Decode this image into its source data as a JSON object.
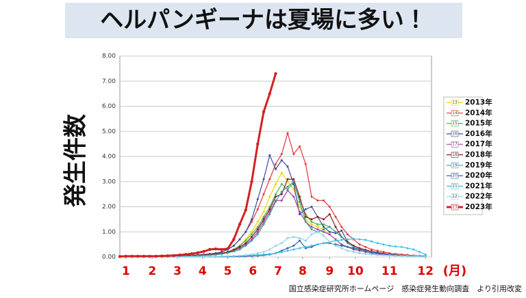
{
  "title": "ヘルパンギーナは夏場に多い！",
  "source": "国立感染症研究所ホームページ　感染症発生動向調査　より引用改変",
  "chart_data": {
    "type": "line",
    "y_label": "発生件数",
    "x_label": "(月)",
    "x": [
      1,
      2,
      3,
      4,
      5,
      6,
      7,
      8,
      9,
      10,
      11,
      12,
      13,
      14,
      15,
      16,
      17,
      18,
      19,
      20,
      21,
      22,
      23,
      24,
      25,
      26,
      27,
      28,
      29,
      30,
      31,
      32,
      33,
      34,
      35,
      36,
      37,
      38,
      39,
      40,
      41,
      42,
      43,
      44,
      45,
      46,
      47,
      48,
      49,
      50,
      51,
      52
    ],
    "xlim": [
      1,
      53
    ],
    "xticks": [
      {
        "value": 2,
        "label": "1"
      },
      {
        "value": 6.4,
        "label": "2"
      },
      {
        "value": 10.6,
        "label": "3"
      },
      {
        "value": 14.8,
        "label": "4"
      },
      {
        "value": 19,
        "label": "5"
      },
      {
        "value": 23.2,
        "label": "6"
      },
      {
        "value": 27.4,
        "label": "7"
      },
      {
        "value": 31.5,
        "label": "8"
      },
      {
        "value": 36,
        "label": "9"
      },
      {
        "value": 40.3,
        "label": "10"
      },
      {
        "value": 46,
        "label": "11"
      },
      {
        "value": 52,
        "label": "12"
      }
    ],
    "ylim": [
      0,
      8
    ],
    "yticks": [
      {
        "value": 0,
        "label": "0.00"
      },
      {
        "value": 1,
        "label": "1.00"
      },
      {
        "value": 2,
        "label": "2.00"
      },
      {
        "value": 3,
        "label": "3.00"
      },
      {
        "value": 4,
        "label": "4.00"
      },
      {
        "value": 5,
        "label": "5.00"
      },
      {
        "value": 6,
        "label": "6.00"
      },
      {
        "value": 7,
        "label": "7.00"
      },
      {
        "value": 8,
        "label": "8.00"
      }
    ],
    "grid": true,
    "series": [
      {
        "name": "2013年",
        "short": "13",
        "color": "#f2d400",
        "values": [
          0.02,
          0.02,
          0.02,
          0.02,
          0.02,
          0.02,
          0.03,
          0.03,
          0.03,
          0.03,
          0.04,
          0.05,
          0.06,
          0.07,
          0.08,
          0.1,
          0.12,
          0.15,
          0.2,
          0.3,
          0.45,
          0.7,
          1.0,
          1.4,
          1.8,
          2.4,
          2.9,
          3.35,
          3.0,
          2.7,
          2.0,
          1.5,
          1.3,
          1.2,
          1.1,
          0.9,
          0.7,
          0.5,
          0.4,
          0.3,
          0.25,
          0.2,
          0.15,
          0.12,
          0.1,
          0.08,
          0.07,
          0.06,
          0.05,
          0.04,
          0.04,
          0.03
        ]
      },
      {
        "name": "2014年",
        "short": "14",
        "color": "#e8333a",
        "values": [
          0.02,
          0.02,
          0.02,
          0.02,
          0.02,
          0.03,
          0.03,
          0.03,
          0.03,
          0.04,
          0.05,
          0.06,
          0.07,
          0.08,
          0.1,
          0.12,
          0.15,
          0.2,
          0.3,
          0.45,
          0.7,
          1.0,
          1.4,
          1.9,
          2.5,
          3.1,
          3.7,
          4.1,
          4.93,
          4.1,
          4.4,
          3.7,
          2.4,
          2.25,
          2.25,
          2.0,
          1.6,
          1.2,
          0.9,
          0.7,
          0.5,
          0.4,
          0.3,
          0.25,
          0.2,
          0.15,
          0.12,
          0.1,
          0.08,
          0.06,
          0.05,
          0.04
        ]
      },
      {
        "name": "2015年",
        "short": "15",
        "color": "#4cb848",
        "values": [
          0.01,
          0.01,
          0.01,
          0.01,
          0.01,
          0.02,
          0.02,
          0.02,
          0.02,
          0.02,
          0.03,
          0.03,
          0.04,
          0.05,
          0.06,
          0.08,
          0.1,
          0.14,
          0.2,
          0.3,
          0.45,
          0.65,
          0.9,
          1.2,
          1.6,
          2.0,
          2.5,
          2.9,
          2.7,
          2.95,
          2.3,
          1.7,
          1.4,
          1.3,
          1.3,
          1.2,
          1.0,
          0.8,
          0.6,
          0.45,
          0.35,
          0.28,
          0.22,
          0.18,
          0.14,
          0.1,
          0.08,
          0.06,
          0.05,
          0.04,
          0.03,
          0.03
        ]
      },
      {
        "name": "2016年",
        "short": "16",
        "color": "#3b4a9a",
        "values": [
          0.02,
          0.02,
          0.02,
          0.02,
          0.02,
          0.02,
          0.03,
          0.03,
          0.03,
          0.04,
          0.05,
          0.06,
          0.07,
          0.08,
          0.1,
          0.12,
          0.15,
          0.2,
          0.3,
          0.45,
          0.7,
          1.0,
          1.5,
          2.3,
          3.1,
          4.05,
          3.5,
          3.85,
          3.6,
          2.9,
          1.7,
          1.9,
          2.0,
          1.6,
          1.2,
          1.0,
          0.95,
          1.05,
          0.6,
          0.45,
          0.35,
          0.28,
          0.22,
          0.18,
          0.14,
          0.1,
          0.08,
          0.06,
          0.05,
          0.04,
          0.03,
          0.03
        ]
      },
      {
        "name": "2017年",
        "short": "17",
        "color": "#a040a8",
        "values": [
          0.01,
          0.01,
          0.01,
          0.01,
          0.01,
          0.01,
          0.02,
          0.02,
          0.02,
          0.02,
          0.03,
          0.03,
          0.04,
          0.05,
          0.06,
          0.08,
          0.1,
          0.13,
          0.18,
          0.25,
          0.35,
          0.5,
          0.7,
          1.0,
          1.4,
          1.8,
          2.25,
          2.25,
          2.65,
          2.4,
          1.8,
          1.4,
          1.2,
          1.1,
          1.0,
          0.9,
          0.7,
          0.5,
          0.4,
          0.3,
          0.25,
          0.2,
          0.15,
          0.12,
          0.1,
          0.08,
          0.06,
          0.05,
          0.04,
          0.03,
          0.03,
          0.02
        ]
      },
      {
        "name": "2018年",
        "short": "18",
        "color": "#8b1a1a",
        "values": [
          0.02,
          0.02,
          0.02,
          0.02,
          0.02,
          0.02,
          0.03,
          0.03,
          0.03,
          0.03,
          0.04,
          0.05,
          0.06,
          0.07,
          0.08,
          0.1,
          0.12,
          0.15,
          0.2,
          0.28,
          0.4,
          0.55,
          0.8,
          1.1,
          1.5,
          1.9,
          2.4,
          2.5,
          3.1,
          3.1,
          2.4,
          1.6,
          1.5,
          1.6,
          1.5,
          1.7,
          1.2,
          0.8,
          0.6,
          0.45,
          0.35,
          0.28,
          0.22,
          0.18,
          0.14,
          0.1,
          0.08,
          0.06,
          0.05,
          0.04,
          0.03,
          0.03
        ]
      },
      {
        "name": "2019年",
        "short": "19",
        "color": "#3aa0a0",
        "values": [
          0.01,
          0.01,
          0.01,
          0.01,
          0.01,
          0.01,
          0.02,
          0.02,
          0.02,
          0.02,
          0.03,
          0.03,
          0.04,
          0.05,
          0.06,
          0.07,
          0.09,
          0.12,
          0.16,
          0.22,
          0.3,
          0.45,
          0.65,
          0.9,
          1.3,
          1.7,
          2.2,
          2.6,
          2.8,
          3.0,
          2.2,
          1.4,
          1.1,
          1.0,
          1.1,
          1.2,
          1.0,
          0.8,
          0.55,
          0.4,
          0.3,
          0.25,
          0.2,
          0.16,
          0.12,
          0.1,
          0.08,
          0.06,
          0.05,
          0.04,
          0.03,
          0.03
        ]
      },
      {
        "name": "2020年",
        "short": "20",
        "color": "#3060b0",
        "values": [
          0.02,
          0.02,
          0.02,
          0.02,
          0.02,
          0.02,
          0.02,
          0.02,
          0.01,
          0.01,
          0.01,
          0.01,
          0.01,
          0.01,
          0.01,
          0.01,
          0.01,
          0.01,
          0.01,
          0.02,
          0.02,
          0.03,
          0.04,
          0.05,
          0.07,
          0.1,
          0.15,
          0.25,
          0.35,
          0.45,
          0.65,
          0.35,
          0.4,
          0.5,
          0.55,
          0.55,
          0.5,
          0.45,
          0.4,
          0.35,
          0.3,
          0.25,
          0.2,
          0.16,
          0.12,
          0.1,
          0.08,
          0.06,
          0.05,
          0.04,
          0.03,
          0.03
        ]
      },
      {
        "name": "2021年",
        "short": "21",
        "color": "#3cc0e4",
        "values": [
          0.01,
          0.01,
          0.01,
          0.01,
          0.01,
          0.01,
          0.01,
          0.01,
          0.01,
          0.01,
          0.01,
          0.01,
          0.01,
          0.01,
          0.01,
          0.02,
          0.02,
          0.03,
          0.03,
          0.04,
          0.05,
          0.06,
          0.07,
          0.08,
          0.1,
          0.12,
          0.15,
          0.2,
          0.25,
          0.3,
          0.35,
          0.4,
          0.45,
          0.5,
          0.55,
          0.6,
          0.65,
          0.68,
          0.7,
          0.72,
          0.7,
          0.68,
          0.62,
          0.55,
          0.5,
          0.45,
          0.42,
          0.4,
          0.35,
          0.3,
          0.2,
          0.1
        ]
      },
      {
        "name": "2022年",
        "short": "22",
        "color": "#88d4ea",
        "values": [
          0.01,
          0.01,
          0.01,
          0.01,
          0.01,
          0.01,
          0.01,
          0.01,
          0.01,
          0.01,
          0.01,
          0.01,
          0.01,
          0.01,
          0.01,
          0.01,
          0.02,
          0.02,
          0.03,
          0.04,
          0.05,
          0.07,
          0.1,
          0.15,
          0.2,
          0.3,
          0.45,
          0.55,
          0.75,
          0.8,
          0.75,
          0.65,
          0.9,
          1.0,
          0.85,
          0.6,
          0.45,
          0.35,
          0.25,
          0.2,
          0.15,
          0.12,
          0.1,
          0.08,
          0.07,
          0.06,
          0.05,
          0.04,
          0.04,
          0.03,
          0.03,
          0.02
        ]
      },
      {
        "name": "2023年",
        "short": "23",
        "color": "#d42020",
        "width": 3,
        "values": [
          0.02,
          0.03,
          0.03,
          0.03,
          0.03,
          0.03,
          0.03,
          0.04,
          0.05,
          0.06,
          0.08,
          0.1,
          0.13,
          0.17,
          0.22,
          0.3,
          0.32,
          0.3,
          0.33,
          0.7,
          1.3,
          1.87,
          3.0,
          4.5,
          5.78,
          6.5,
          7.3,
          null,
          null,
          null,
          null,
          null,
          null,
          null,
          null,
          null,
          null,
          null,
          null,
          null,
          null,
          null,
          null,
          null,
          null,
          null,
          null,
          null,
          null,
          null,
          null,
          null
        ]
      }
    ]
  }
}
